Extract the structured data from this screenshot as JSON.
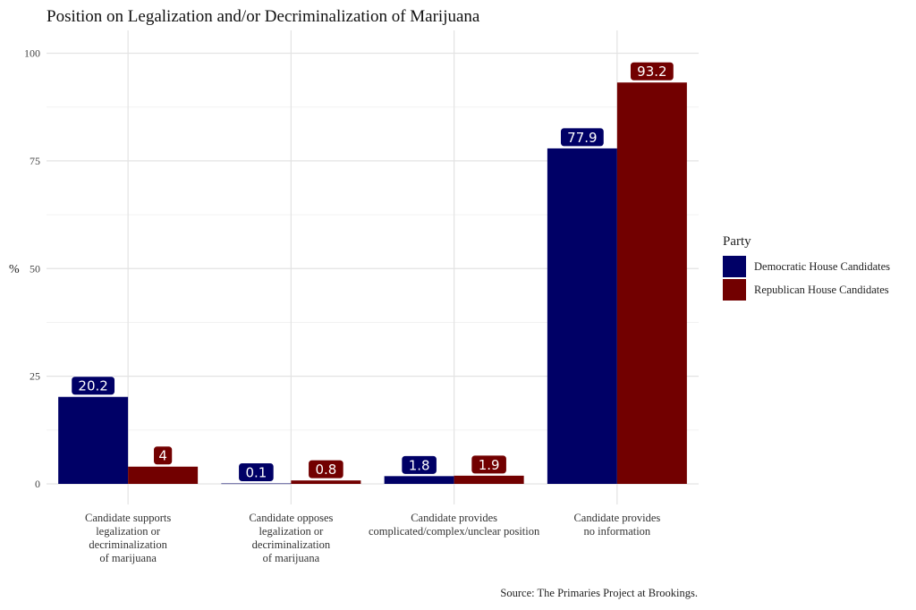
{
  "chart_data": {
    "type": "bar",
    "title": "Position on Legalization and/or Decriminalization of Marijuana",
    "ylabel": "%",
    "xlabel": "",
    "ylim": [
      0,
      103
    ],
    "yticks": [
      0,
      25,
      50,
      75,
      100
    ],
    "grid": true,
    "categories": [
      [
        "Candidate supports",
        "legalization or",
        "decriminalization",
        "of marijuana"
      ],
      [
        "Candidate opposes",
        "legalization or",
        "decriminalization",
        "of marijuana"
      ],
      [
        "Candidate provides",
        "complicated/complex/unclear position"
      ],
      [
        "Candidate provides",
        "no information"
      ]
    ],
    "series": [
      {
        "name": "Democratic House Candidates",
        "color": "#000066",
        "values": [
          20.2,
          0.1,
          1.8,
          77.9
        ],
        "labels": [
          "20.2",
          "0.1",
          "1.8",
          "77.9"
        ]
      },
      {
        "name": "Republican House Candidates",
        "color": "#720000",
        "values": [
          4,
          0.8,
          1.9,
          93.2
        ],
        "labels": [
          "4",
          "0.8",
          "1.9",
          "93.2"
        ]
      }
    ],
    "legend": {
      "title": "Party",
      "position": "right"
    },
    "caption": "Source: The Primaries Project at Brookings."
  }
}
